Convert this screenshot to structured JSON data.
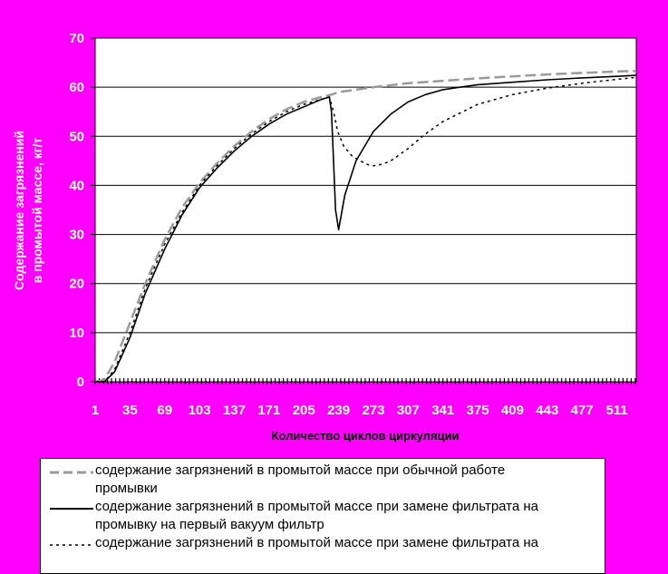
{
  "chart_data": {
    "type": "line",
    "title": "",
    "xlabel": "Количество циклов циркуляции",
    "ylabel_line1": "Содержание загрязнений",
    "ylabel_line2": "в промытой массе, кг/т",
    "xlim": [
      1,
      530
    ],
    "ylim": [
      0,
      70
    ],
    "yticks": [
      0,
      10,
      20,
      30,
      40,
      50,
      60,
      70
    ],
    "xticks": [
      1,
      35,
      69,
      103,
      137,
      171,
      205,
      239,
      273,
      307,
      341,
      375,
      409,
      443,
      477,
      511
    ],
    "grid": "horizontal",
    "legend_position": "bottom",
    "series": [
      {
        "name": "содержание загрязнений в промытой массе при обычной работе промывки",
        "style": "dashed",
        "color": "#9a9a9a",
        "x": [
          1,
          10,
          20,
          35,
          50,
          69,
          86,
          103,
          120,
          137,
          154,
          171,
          188,
          205,
          222,
          232,
          239,
          256,
          273,
          307,
          341,
          375,
          409,
          443,
          477,
          511,
          530
        ],
        "y": [
          0,
          0.5,
          4,
          12,
          20,
          29,
          35.5,
          40.5,
          44.5,
          48,
          51,
          53.5,
          55.5,
          57,
          58,
          58.5,
          59,
          59.5,
          60,
          60.8,
          61.3,
          61.8,
          62.2,
          62.6,
          62.9,
          63.2,
          63.3
        ]
      },
      {
        "name": "содержание загрязнений в промытой массе при замене фильтрата на промывку на первый вакуум фильтр",
        "style": "solid",
        "color": "#000000",
        "x": [
          1,
          10,
          20,
          35,
          50,
          69,
          86,
          103,
          120,
          137,
          154,
          171,
          188,
          205,
          222,
          230,
          232,
          234,
          236,
          239,
          245,
          256,
          273,
          290,
          307,
          324,
          341,
          358,
          375,
          409,
          443,
          477,
          511,
          530
        ],
        "y": [
          0,
          0,
          2,
          9,
          18,
          27,
          34,
          39.5,
          43.5,
          47,
          50,
          52.5,
          54.5,
          56,
          57.5,
          58,
          55,
          45,
          35,
          31,
          38,
          45,
          51,
          54.5,
          57,
          58.5,
          59.5,
          60,
          60.5,
          61,
          61.5,
          61.9,
          62.2,
          62.4
        ]
      },
      {
        "name": "содержание загрязнений в промытой массе при замене фильтрата на",
        "style": "dotted",
        "color": "#000000",
        "x": [
          1,
          10,
          20,
          35,
          50,
          69,
          86,
          103,
          120,
          137,
          154,
          171,
          188,
          205,
          222,
          230,
          234,
          238,
          244,
          252,
          260,
          268,
          273,
          282,
          290,
          307,
          324,
          341,
          375,
          409,
          443,
          477,
          511,
          530
        ],
        "y": [
          0,
          0,
          2.5,
          10,
          19,
          28,
          34.5,
          40,
          44,
          47.5,
          50.5,
          53,
          55,
          56.5,
          57.5,
          58,
          55,
          51,
          48,
          46,
          45,
          44.2,
          44,
          44.3,
          45,
          47.5,
          50.5,
          53,
          56.5,
          58.5,
          59.8,
          60.8,
          61.6,
          62
        ]
      }
    ]
  },
  "legend": {
    "entries": [
      {
        "line1": "содержание загрязнений в промытой массе при обычной работе",
        "line2": "промывки"
      },
      {
        "line1": "содержание загрязнений в промытой массе при замене фильтрата на",
        "line2": "промывку на первый вакуум фильтр"
      },
      {
        "line1": "содержание загрязнений в промытой массе при замене фильтрата на",
        "line2": ""
      }
    ]
  }
}
